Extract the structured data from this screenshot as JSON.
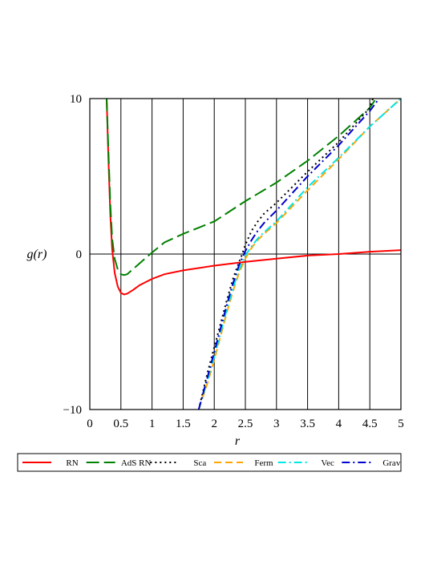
{
  "chart_data": {
    "type": "line",
    "title": "",
    "xlabel": "r",
    "ylabel": "g(r)",
    "xlim": [
      0,
      5
    ],
    "ylim": [
      -10,
      10
    ],
    "grid": "vertical",
    "legend_position": "bottom",
    "x_ticks": [
      "0",
      "0.5",
      "1",
      "1.5",
      "2",
      "2.5",
      "3",
      "3.5",
      "4",
      "4.5",
      "5"
    ],
    "y_ticks": [
      "-10",
      "0",
      "10"
    ],
    "series": [
      {
        "name": "RN",
        "color": "#ff0000",
        "dash": "solid",
        "x": [
          0.27,
          0.3,
          0.33,
          0.36,
          0.4,
          0.45,
          0.5,
          0.55,
          0.6,
          0.7,
          0.8,
          1.0,
          1.2,
          1.5,
          2.0,
          2.5,
          3.0,
          3.5,
          4.0,
          4.5,
          5.0
        ],
        "y": [
          10,
          6.0,
          2.5,
          0.3,
          -1.2,
          -2.1,
          -2.5,
          -2.6,
          -2.55,
          -2.3,
          -2.0,
          -1.6,
          -1.3,
          -1.05,
          -0.75,
          -0.5,
          -0.3,
          -0.1,
          0.0,
          0.15,
          0.25
        ]
      },
      {
        "name": "AdS RN",
        "color": "#008000",
        "dash": "longdash",
        "x": [
          0.27,
          0.3,
          0.33,
          0.36,
          0.4,
          0.45,
          0.5,
          0.55,
          0.6,
          0.7,
          0.8,
          1.0,
          1.2,
          1.5,
          2.0,
          2.5,
          3.0,
          3.5,
          4.0,
          4.5,
          4.6
        ],
        "y": [
          10,
          6.5,
          3.2,
          1.0,
          -0.3,
          -1.0,
          -1.3,
          -1.35,
          -1.3,
          -0.95,
          -0.6,
          0.1,
          0.75,
          1.3,
          2.1,
          3.4,
          4.6,
          6.0,
          7.6,
          9.4,
          10
        ]
      },
      {
        "name": "Sca",
        "color": "#000000",
        "dash": "dot",
        "x": [
          1.75,
          1.9,
          2.0,
          2.1,
          2.2,
          2.3,
          2.4,
          2.45,
          2.5,
          2.6,
          2.7,
          2.8,
          3.0,
          3.5,
          4.0,
          4.5,
          4.55
        ],
        "y": [
          -10,
          -7.5,
          -6.0,
          -4.5,
          -3.0,
          -1.6,
          -0.5,
          0.0,
          0.6,
          1.5,
          2.1,
          2.6,
          3.3,
          5.3,
          7.2,
          9.4,
          10
        ]
      },
      {
        "name": "Ferm",
        "color": "#ffa500",
        "dash": "dash",
        "x": [
          1.75,
          1.9,
          2.0,
          2.1,
          2.2,
          2.3,
          2.4,
          2.5,
          2.6,
          2.7,
          2.8,
          3.0,
          3.5,
          4.0,
          4.5,
          5.0
        ],
        "y": [
          -10,
          -8.2,
          -6.8,
          -5.3,
          -3.8,
          -2.4,
          -1.2,
          -0.3,
          0.4,
          0.9,
          1.3,
          2.0,
          4.1,
          6.1,
          8.2,
          10
        ]
      },
      {
        "name": "Vec",
        "color": "#00e5e5",
        "dash": "dashdot",
        "x": [
          1.75,
          1.9,
          2.0,
          2.1,
          2.2,
          2.3,
          2.4,
          2.5,
          2.6,
          2.7,
          2.8,
          3.0,
          3.5,
          4.0,
          4.5,
          5.0
        ],
        "y": [
          -10,
          -8.0,
          -6.6,
          -5.1,
          -3.6,
          -2.2,
          -1.0,
          -0.1,
          0.5,
          1.0,
          1.4,
          2.1,
          4.3,
          6.2,
          8.2,
          10
        ]
      },
      {
        "name": "Grav",
        "color": "#0000cd",
        "dash": "dashdot",
        "x": [
          1.75,
          1.9,
          2.0,
          2.1,
          2.2,
          2.3,
          2.4,
          2.5,
          2.6,
          2.7,
          2.8,
          3.0,
          3.5,
          4.0,
          4.5,
          4.65
        ],
        "y": [
          -10,
          -7.8,
          -6.3,
          -4.8,
          -3.3,
          -1.9,
          -0.7,
          0.2,
          0.9,
          1.5,
          2.0,
          2.8,
          5.0,
          7.0,
          9.2,
          10
        ]
      }
    ]
  }
}
